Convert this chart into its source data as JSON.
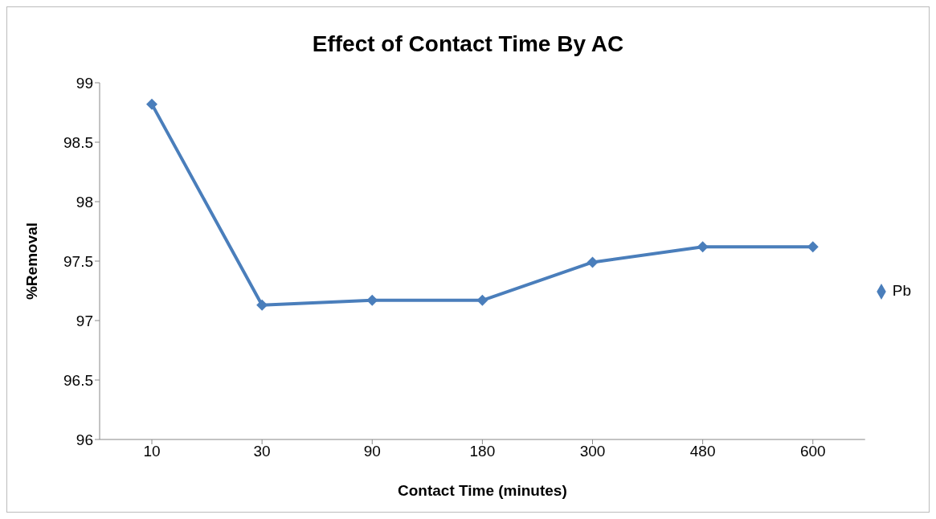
{
  "chart_data": {
    "type": "line",
    "title": "Effect of Contact Time By AC",
    "xlabel": "Contact Time (minutes)",
    "ylabel": "%Removal",
    "categories": [
      "10",
      "30",
      "90",
      "180",
      "300",
      "480",
      "600"
    ],
    "series": [
      {
        "name": "Pb",
        "color": "#4a7ebb",
        "values": [
          98.82,
          97.13,
          97.17,
          97.17,
          97.49,
          97.62,
          97.62
        ]
      }
    ],
    "ylim": [
      96,
      99
    ],
    "yticks": [
      96,
      96.5,
      97,
      97.5,
      98,
      98.5,
      99
    ],
    "grid": false,
    "legend": "right",
    "marker": "diamond",
    "line_style": "solid"
  }
}
